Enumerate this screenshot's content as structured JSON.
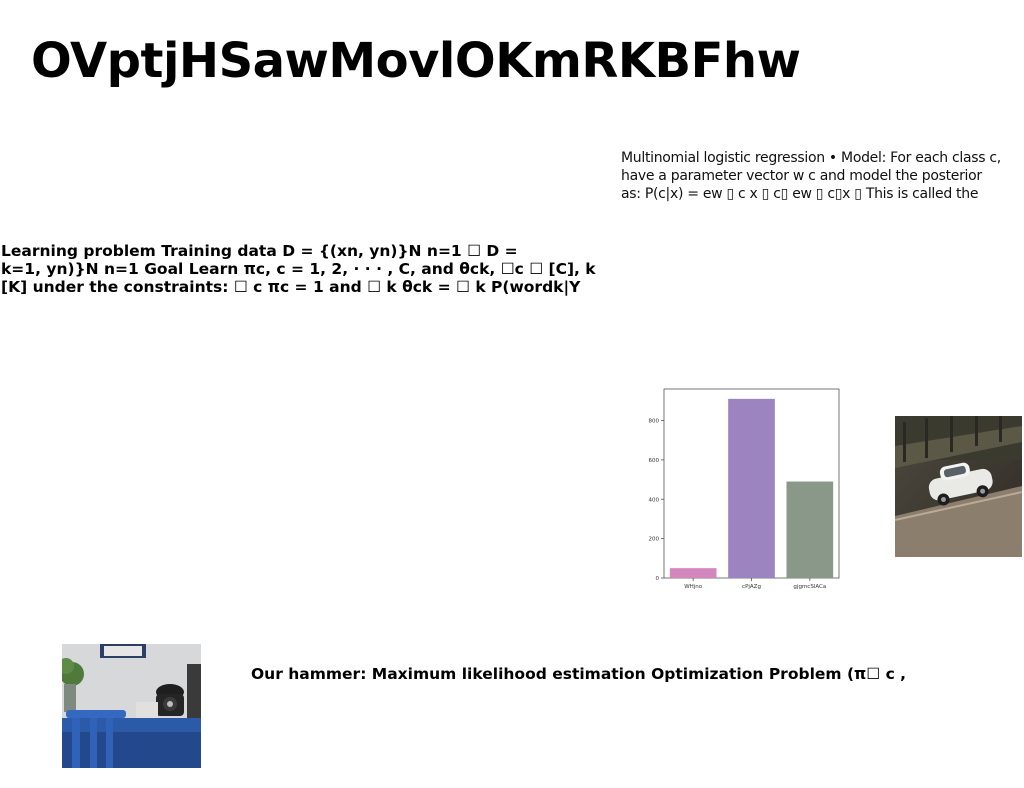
{
  "slide": {
    "title": "OVptjHSawMovlOKmRKBFhw",
    "note_lines": [
      "Multinomial logistic regression • Model: For each class c,",
      "have a parameter vector w c and model the posterior",
      "as: P(c|x) = ew ▯ c x ▯ c▯ ew ▯ c▯x ▯ This is called the"
    ],
    "problem_lines": [
      "Learning problem Training data D = {(xn, yn)}N n=1 ☐ D =",
      "k=1, yn)}N n=1 Goal Learn πc, c = 1, 2, · · · , C, and θck, ☐c ☐ [C], k",
      "[K] under the constraints: ☐ c πc = 1 and ☐ k θck = ☐ k P(wordk|Y"
    ],
    "hammer_text": "Our hammer: Maximum likelihood estimation Optimization Problem (π☐ c ,"
  },
  "chart_data": {
    "type": "bar",
    "categories": [
      "WHjno",
      "cPjAZg",
      "gjgmcSlACa"
    ],
    "values": [
      50,
      910,
      490
    ],
    "colors": [
      "#d287bf",
      "#9b84bf",
      "#8a988a"
    ],
    "ylim": [
      0,
      960
    ],
    "yticks": [
      0,
      200,
      400,
      600,
      800
    ],
    "grid": false,
    "title": "",
    "xlabel": "",
    "ylabel": ""
  },
  "images": {
    "car_photo": "white-vintage-car-on-street",
    "phone_photo": "blue-desk-with-rotary-telephone"
  }
}
